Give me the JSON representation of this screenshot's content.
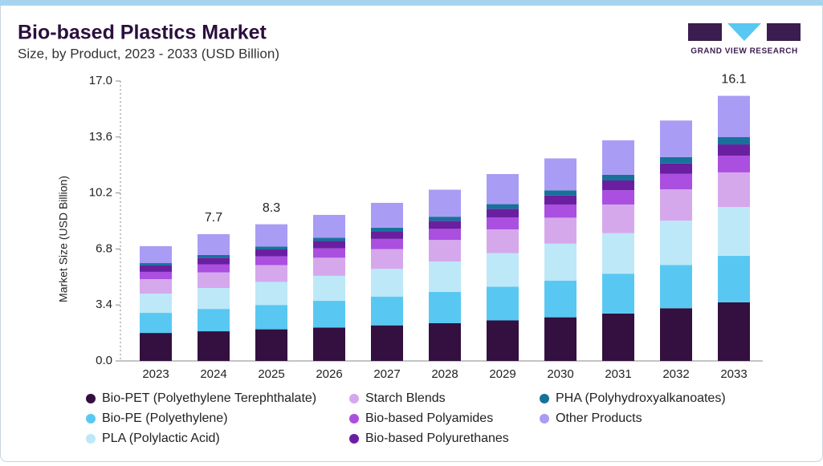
{
  "brand": "GRAND VIEW RESEARCH",
  "chart_data": {
    "type": "stacked_bar",
    "title": "Bio-based Plastics Market",
    "subtitle": "Size, by Product, 2023 - 2033 (USD Billion)",
    "y_label": "Market Size (USD Billion)",
    "categories": [
      "2023",
      "2024",
      "2025",
      "2026",
      "2027",
      "2028",
      "2029",
      "2030",
      "2031",
      "2032",
      "2033"
    ],
    "series": [
      {
        "name": "Bio-PET (Polyethylene Terephthalate)",
        "color": "#33103f",
        "values": [
          1.7,
          1.8,
          1.92,
          2.03,
          2.16,
          2.29,
          2.46,
          2.65,
          2.88,
          3.2,
          3.56
        ]
      },
      {
        "name": "Bio-PE (Polyethylene)",
        "color": "#58c8f2",
        "values": [
          1.22,
          1.36,
          1.48,
          1.62,
          1.75,
          1.9,
          2.05,
          2.22,
          2.42,
          2.62,
          2.82
        ]
      },
      {
        "name": "PLA (Polylactic Acid)",
        "color": "#bde8f8",
        "values": [
          1.17,
          1.27,
          1.4,
          1.52,
          1.68,
          1.85,
          2.04,
          2.25,
          2.46,
          2.7,
          2.97
        ]
      },
      {
        "name": "Starch Blends",
        "color": "#d5a8ec",
        "values": [
          0.88,
          0.95,
          1.02,
          1.1,
          1.2,
          1.31,
          1.44,
          1.58,
          1.74,
          1.9,
          2.1
        ]
      },
      {
        "name": "Bio-based Polyamides",
        "color": "#aa4fe0",
        "values": [
          0.44,
          0.49,
          0.53,
          0.57,
          0.62,
          0.67,
          0.73,
          0.8,
          0.87,
          0.94,
          1.02
        ]
      },
      {
        "name": "Bio-based Polyurethanes",
        "color": "#6a1fa0",
        "values": [
          0.39,
          0.4,
          0.42,
          0.44,
          0.46,
          0.49,
          0.52,
          0.55,
          0.59,
          0.63,
          0.68
        ]
      },
      {
        "name": "PHA (Polyhydroxyalkanoates)",
        "color": "#17729a",
        "values": [
          0.14,
          0.16,
          0.18,
          0.2,
          0.22,
          0.25,
          0.28,
          0.31,
          0.35,
          0.39,
          0.44
        ]
      },
      {
        "name": "Other Products",
        "color": "#a99cf5",
        "values": [
          1.03,
          1.27,
          1.35,
          1.39,
          1.51,
          1.64,
          1.83,
          1.94,
          2.09,
          2.22,
          2.51
        ]
      }
    ],
    "annotations": [
      {
        "x": "2024",
        "text": "7.7"
      },
      {
        "x": "2025",
        "text": "8.3"
      },
      {
        "x": "2033",
        "text": "16.1"
      }
    ],
    "ylim": [
      0,
      17
    ],
    "yticks": [
      {
        "value": 0,
        "label": "0.0"
      },
      3.4,
      6.8,
      10.2,
      13.6,
      {
        "value": 17,
        "label": "17.0"
      }
    ]
  }
}
